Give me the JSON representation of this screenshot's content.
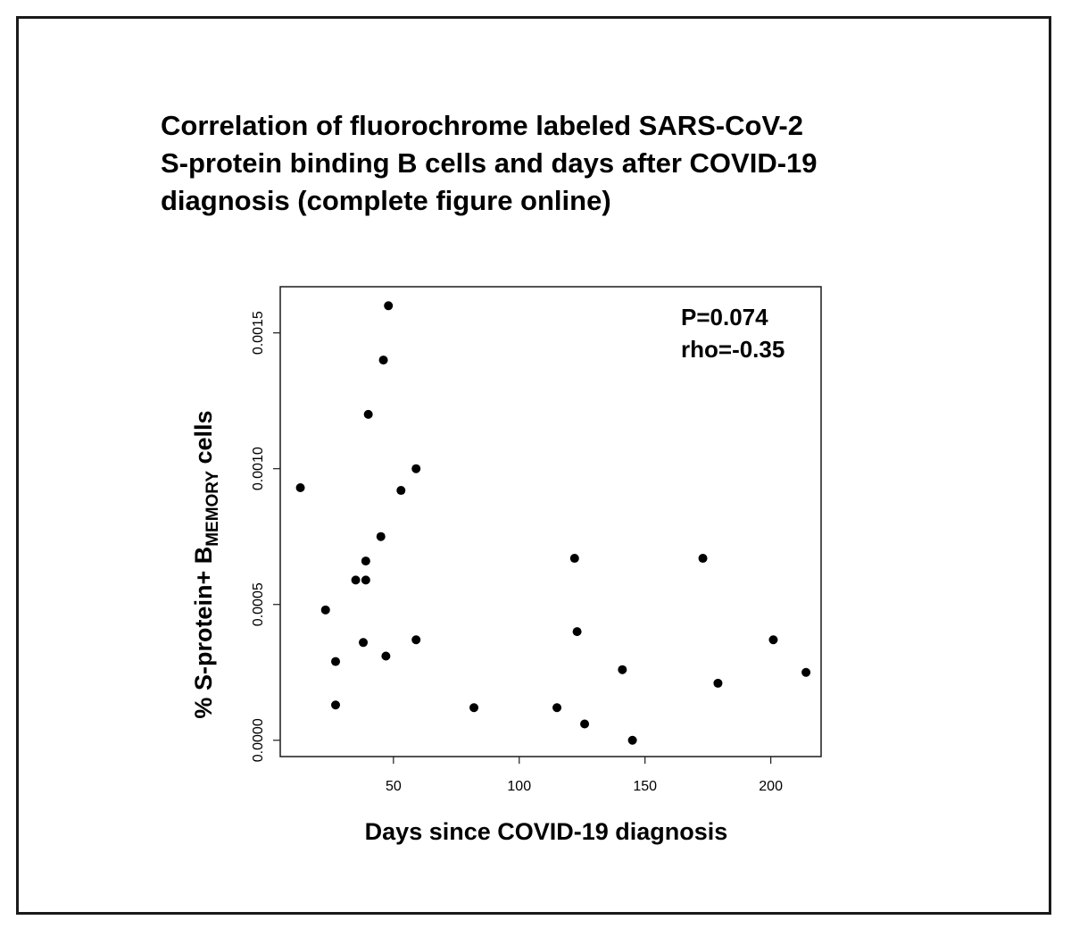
{
  "chart_data": {
    "type": "scatter",
    "title_lines": [
      "Correlation of fluorochrome labeled SARS-CoV-2",
      "S-protein binding B cells and days after COVID-19",
      "diagnosis (complete figure online)"
    ],
    "xlabel": "Days since COVID-19 diagnosis",
    "ylabel_main": "% S-protein+ B",
    "ylabel_subscript": "MEMORY",
    "ylabel_suffix": " cells",
    "xlim": [
      5,
      220
    ],
    "ylim": [
      -6e-05,
      0.00167
    ],
    "x_ticks": [
      50,
      100,
      150,
      200
    ],
    "x_tick_labels": [
      "50",
      "100",
      "150",
      "200"
    ],
    "y_ticks": [
      0.0,
      0.0005,
      0.001,
      0.0015
    ],
    "y_tick_labels": [
      "0.0000",
      "0.0005",
      "0.0010",
      "0.0015"
    ],
    "grid": false,
    "annotations": [
      "P=0.074",
      "rho=-0.35"
    ],
    "points": [
      {
        "x": 13,
        "y": 0.00093
      },
      {
        "x": 23,
        "y": 0.00048
      },
      {
        "x": 27,
        "y": 0.00029
      },
      {
        "x": 27,
        "y": 0.00013
      },
      {
        "x": 35,
        "y": 0.00059
      },
      {
        "x": 38,
        "y": 0.00036
      },
      {
        "x": 39,
        "y": 0.00066
      },
      {
        "x": 39,
        "y": 0.00059
      },
      {
        "x": 40,
        "y": 0.0012
      },
      {
        "x": 45,
        "y": 0.00075
      },
      {
        "x": 46,
        "y": 0.0014
      },
      {
        "x": 47,
        "y": 0.00031
      },
      {
        "x": 48,
        "y": 0.0016
      },
      {
        "x": 53,
        "y": 0.00092
      },
      {
        "x": 59,
        "y": 0.001
      },
      {
        "x": 59,
        "y": 0.00037
      },
      {
        "x": 82,
        "y": 0.00012
      },
      {
        "x": 115,
        "y": 0.00012
      },
      {
        "x": 122,
        "y": 0.00067
      },
      {
        "x": 123,
        "y": 0.0004
      },
      {
        "x": 126,
        "y": 6e-05
      },
      {
        "x": 141,
        "y": 0.00026
      },
      {
        "x": 145,
        "y": 0.0
      },
      {
        "x": 173,
        "y": 0.00067
      },
      {
        "x": 179,
        "y": 0.00021
      },
      {
        "x": 201,
        "y": 0.00037
      },
      {
        "x": 214,
        "y": 0.00025
      }
    ],
    "colors": {
      "points": "#000000",
      "axes": "#1a1a1a",
      "frame": "#1a1a1a"
    }
  }
}
